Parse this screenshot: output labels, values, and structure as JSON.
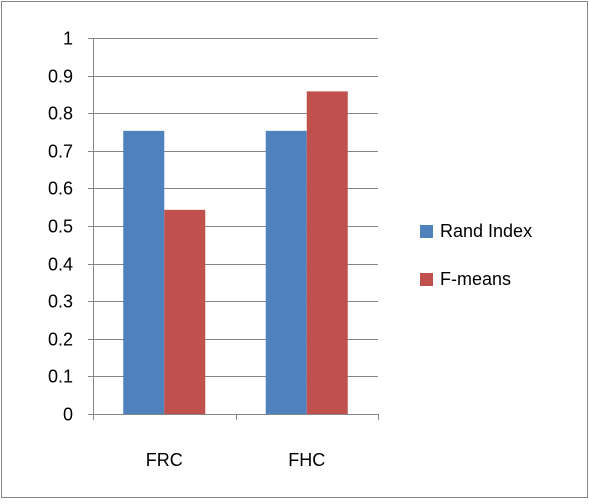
{
  "chart_data": {
    "type": "bar",
    "categories": [
      "FRC",
      "FHC"
    ],
    "series": [
      {
        "name": "Rand Index",
        "values": [
          0.753,
          0.753
        ],
        "color": "#4f81bd"
      },
      {
        "name": "F-means",
        "values": [
          0.543,
          0.858
        ],
        "color": "#c0504d"
      }
    ],
    "y_ticks": [
      "0",
      "0.1",
      "0.2",
      "0.3",
      "0.4",
      "0.5",
      "0.6",
      "0.7",
      "0.8",
      "0.9",
      "1"
    ],
    "ylim": [
      0,
      1
    ],
    "grid": true,
    "legend_position": "right"
  }
}
